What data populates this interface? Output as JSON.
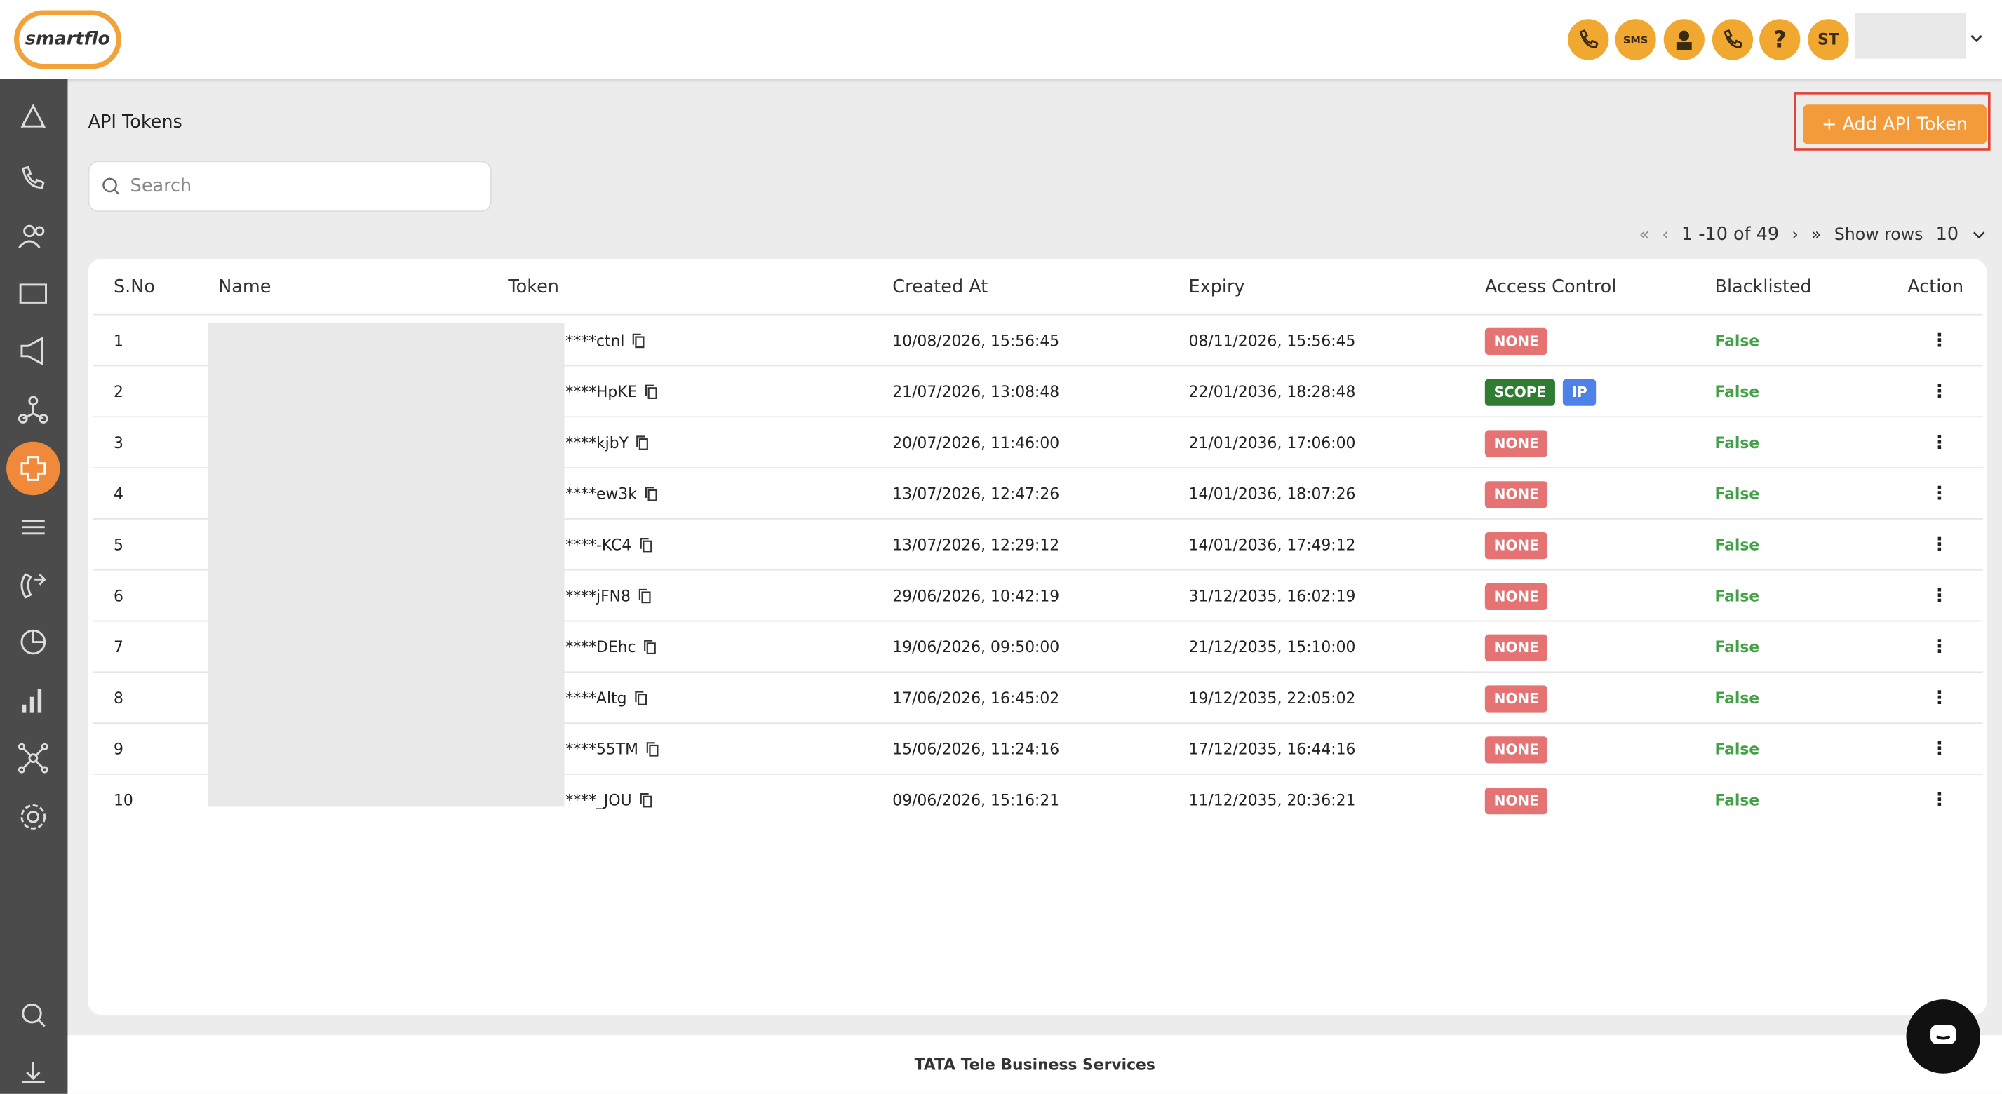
{
  "header": {
    "logo": "smartflo",
    "sms_icon": "SMS",
    "user_initials": "ST"
  },
  "page": {
    "title": "API Tokens",
    "add_button": "+ Add API Token",
    "search_placeholder": "Search",
    "pagination": {
      "range": "1 -10 of 49",
      "show_rows_label": "Show rows",
      "rows_per_page": "10"
    }
  },
  "table": {
    "columns": [
      "S.No",
      "Name",
      "Token",
      "Created At",
      "Expiry",
      "Access Control",
      "Blacklisted",
      "Action"
    ],
    "rows": [
      {
        "sno": "1",
        "token": "****ctnl",
        "created_at": "10/08/2026, 15:56:45",
        "expiry": "08/11/2026, 15:56:45",
        "access_control": [
          "NONE"
        ],
        "blacklisted": "False"
      },
      {
        "sno": "2",
        "token": "****HpKE",
        "created_at": "21/07/2026, 13:08:48",
        "expiry": "22/01/2036, 18:28:48",
        "access_control": [
          "SCOPE",
          "IP"
        ],
        "blacklisted": "False"
      },
      {
        "sno": "3",
        "token": "****kjbY",
        "created_at": "20/07/2026, 11:46:00",
        "expiry": "21/01/2036, 17:06:00",
        "access_control": [
          "NONE"
        ],
        "blacklisted": "False"
      },
      {
        "sno": "4",
        "token": "****ew3k",
        "created_at": "13/07/2026, 12:47:26",
        "expiry": "14/01/2036, 18:07:26",
        "access_control": [
          "NONE"
        ],
        "blacklisted": "False"
      },
      {
        "sno": "5",
        "token": "****-KC4",
        "created_at": "13/07/2026, 12:29:12",
        "expiry": "14/01/2036, 17:49:12",
        "access_control": [
          "NONE"
        ],
        "blacklisted": "False"
      },
      {
        "sno": "6",
        "token": "****jFN8",
        "created_at": "29/06/2026, 10:42:19",
        "expiry": "31/12/2035, 16:02:19",
        "access_control": [
          "NONE"
        ],
        "blacklisted": "False"
      },
      {
        "sno": "7",
        "token": "****DEhc",
        "created_at": "19/06/2026, 09:50:00",
        "expiry": "21/12/2035, 15:10:00",
        "access_control": [
          "NONE"
        ],
        "blacklisted": "False"
      },
      {
        "sno": "8",
        "token": "****Altg",
        "created_at": "17/06/2026, 16:45:02",
        "expiry": "19/12/2035, 22:05:02",
        "access_control": [
          "NONE"
        ],
        "blacklisted": "False"
      },
      {
        "sno": "9",
        "token": "****55TM",
        "created_at": "15/06/2026, 11:24:16",
        "expiry": "17/12/2035, 16:44:16",
        "access_control": [
          "NONE"
        ],
        "blacklisted": "False"
      },
      {
        "sno": "10",
        "token": "****_JOU",
        "created_at": "09/06/2026, 15:16:21",
        "expiry": "11/12/2035, 20:36:21",
        "access_control": [
          "NONE"
        ],
        "blacklisted": "False"
      }
    ]
  },
  "footer": {
    "text": "TATA Tele Business Services"
  }
}
